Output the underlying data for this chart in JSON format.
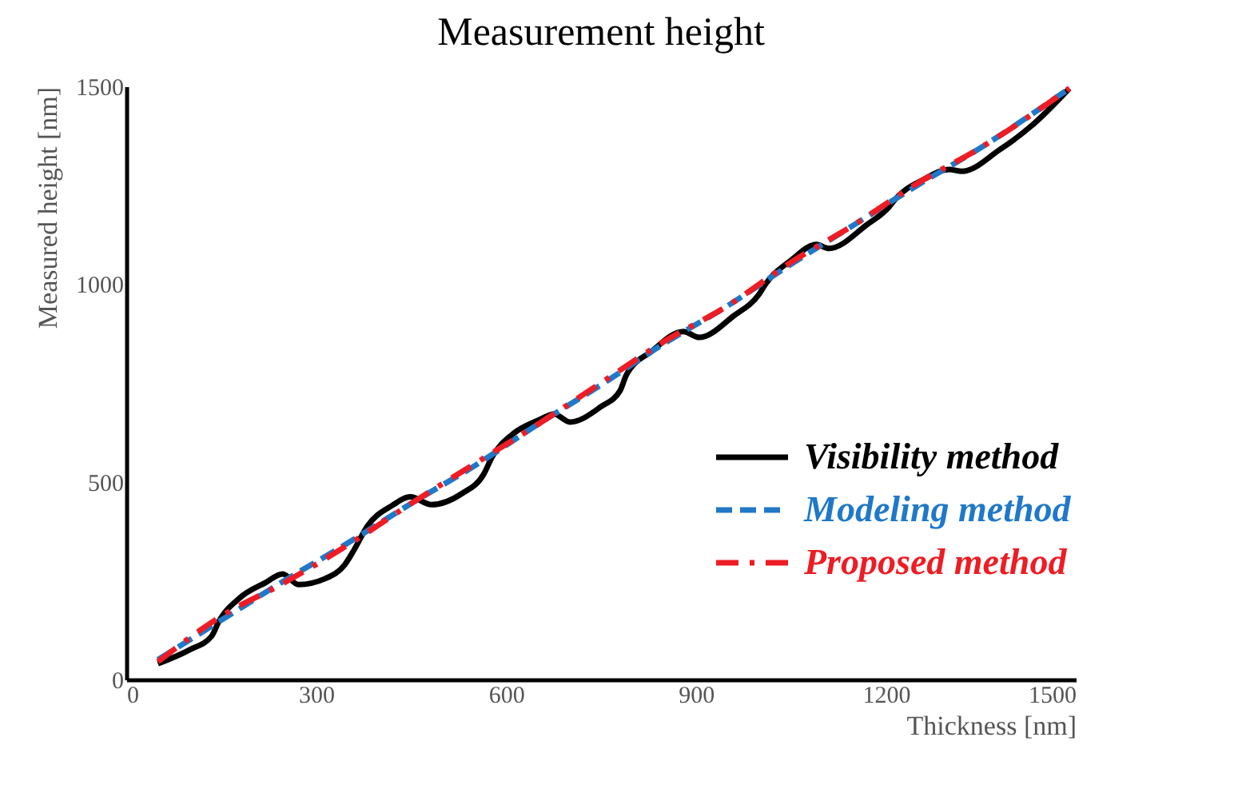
{
  "chart_data": {
    "type": "line",
    "title": "Measurement height",
    "xlabel": "Thickness [nm]",
    "ylabel": "Measured height [nm]",
    "xlim": [
      0,
      1500
    ],
    "ylim": [
      0,
      1500
    ],
    "xticks": [
      0,
      300,
      600,
      900,
      1200,
      1500
    ],
    "yticks": [
      0,
      500,
      1000,
      1500
    ],
    "legend": "bottom right",
    "series": [
      {
        "name": "Visibility method",
        "color": "#000000",
        "line_style": "solid",
        "x": [
          50,
          100,
          135,
          146,
          179,
          220,
          247,
          272,
          314,
          345,
          360,
          381,
          420,
          449,
          482,
          530,
          565,
          578,
          610,
          650,
          676,
          701,
          750,
          780,
          790,
          830,
          880,
          905,
          960,
          1000,
          1010,
          1050,
          1090,
          1110,
          1170,
          1205,
          1215,
          1260,
          1300,
          1320,
          1380,
          1430,
          1490
        ],
        "values": [
          40,
          75,
          110,
          146,
          206,
          245,
          267,
          240,
          255,
          290,
          328,
          388,
          440,
          462,
          442,
          470,
          520,
          563,
          620,
          655,
          671,
          651,
          690,
          730,
          770,
          830,
          880,
          865,
          920,
          975,
          1000,
          1060,
          1100,
          1090,
          1150,
          1195,
          1215,
          1265,
          1290,
          1285,
          1340,
          1400,
          1495
        ]
      },
      {
        "name": "Modeling method",
        "color": "#1f78c8",
        "line_style": "dashed",
        "x": [
          50,
          150,
          250,
          350,
          450,
          550,
          650,
          750,
          850,
          950,
          1050,
          1150,
          1250,
          1350,
          1490
        ],
        "values": [
          50,
          150,
          250,
          345,
          445,
          540,
          645,
          745,
          850,
          945,
          1050,
          1150,
          1250,
          1345,
          1495
        ]
      },
      {
        "name": "Proposed method",
        "color": "#ee1c24",
        "line_style": "dashdot",
        "x": [
          50,
          150,
          250,
          350,
          450,
          550,
          650,
          750,
          850,
          950,
          1050,
          1150,
          1250,
          1350,
          1490
        ],
        "values": [
          45,
          160,
          245,
          340,
          445,
          545,
          645,
          750,
          855,
          945,
          1055,
          1150,
          1255,
          1345,
          1495
        ]
      }
    ]
  }
}
